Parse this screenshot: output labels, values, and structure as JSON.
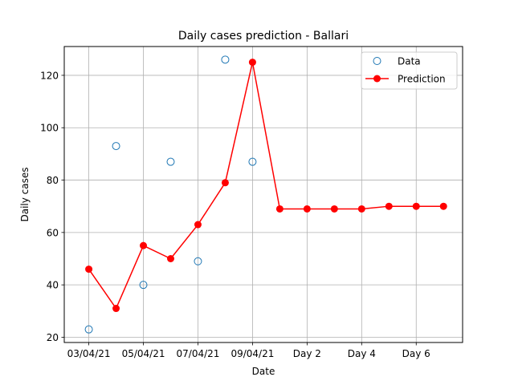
{
  "chart_data": {
    "type": "line",
    "title": "Daily cases prediction - Ballari",
    "xlabel": "Date",
    "ylabel": "Daily cases",
    "x_ticks": [
      {
        "pos": 0,
        "label": "03/04/21"
      },
      {
        "pos": 2,
        "label": "05/04/21"
      },
      {
        "pos": 4,
        "label": "07/04/21"
      },
      {
        "pos": 6,
        "label": "09/04/21"
      },
      {
        "pos": 8,
        "label": "Day 2"
      },
      {
        "pos": 10,
        "label": "Day 4"
      },
      {
        "pos": 12,
        "label": "Day 6"
      }
    ],
    "y_ticks": [
      20,
      40,
      60,
      80,
      100,
      120
    ],
    "xlim": [
      -0.9,
      13.7
    ],
    "ylim": [
      18,
      131
    ],
    "grid": true,
    "legend_position": "top-right",
    "series": [
      {
        "name": "Data",
        "style": "hollow-markers",
        "color": "#1f77b4",
        "x": [
          0,
          1,
          2,
          3,
          4,
          5,
          6
        ],
        "values": [
          23,
          93,
          40,
          87,
          49,
          126,
          87
        ]
      },
      {
        "name": "Prediction",
        "style": "line-markers",
        "color": "#ff0000",
        "x": [
          0,
          1,
          2,
          3,
          4,
          5,
          6,
          7,
          8,
          9,
          10,
          11,
          12,
          13
        ],
        "values": [
          46,
          31,
          55,
          50,
          63,
          79,
          125,
          69,
          69,
          69,
          69,
          70,
          70,
          70
        ]
      }
    ]
  }
}
